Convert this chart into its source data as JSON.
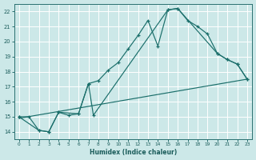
{
  "xlabel": "Humidex (Indice chaleur)",
  "bg_color": "#cce8e8",
  "grid_color": "#b8d8d8",
  "line_color": "#1a6e6a",
  "xlim": [
    -0.5,
    23.5
  ],
  "ylim": [
    13.5,
    22.5
  ],
  "xticks": [
    0,
    1,
    2,
    3,
    4,
    5,
    6,
    7,
    8,
    9,
    10,
    11,
    12,
    13,
    14,
    15,
    16,
    17,
    18,
    19,
    20,
    21,
    22,
    23
  ],
  "yticks": [
    14,
    15,
    16,
    17,
    18,
    19,
    20,
    21,
    22
  ],
  "line1_x": [
    0,
    1,
    2,
    3,
    4,
    5,
    6,
    7,
    8,
    9,
    10,
    11,
    12,
    13,
    14,
    15,
    16,
    17,
    18,
    19,
    20,
    21,
    22,
    23
  ],
  "line1_y": [
    15,
    15,
    14.1,
    14.0,
    15.3,
    15.1,
    15.2,
    17.2,
    17.4,
    18.1,
    18.6,
    19.5,
    20.4,
    21.4,
    19.7,
    22.1,
    22.2,
    21.4,
    21.0,
    20.5,
    19.2,
    18.8,
    18.5,
    17.5
  ],
  "line2_x": [
    0,
    2,
    3,
    4,
    6,
    7,
    7.5,
    15,
    16,
    20,
    21,
    22,
    23
  ],
  "line2_y": [
    15,
    14.1,
    14.0,
    15.3,
    15.2,
    17.2,
    15.1,
    22.1,
    22.2,
    19.2,
    18.8,
    18.5,
    17.5
  ],
  "line3_x": [
    0,
    23
  ],
  "line3_y": [
    14.9,
    17.5
  ]
}
